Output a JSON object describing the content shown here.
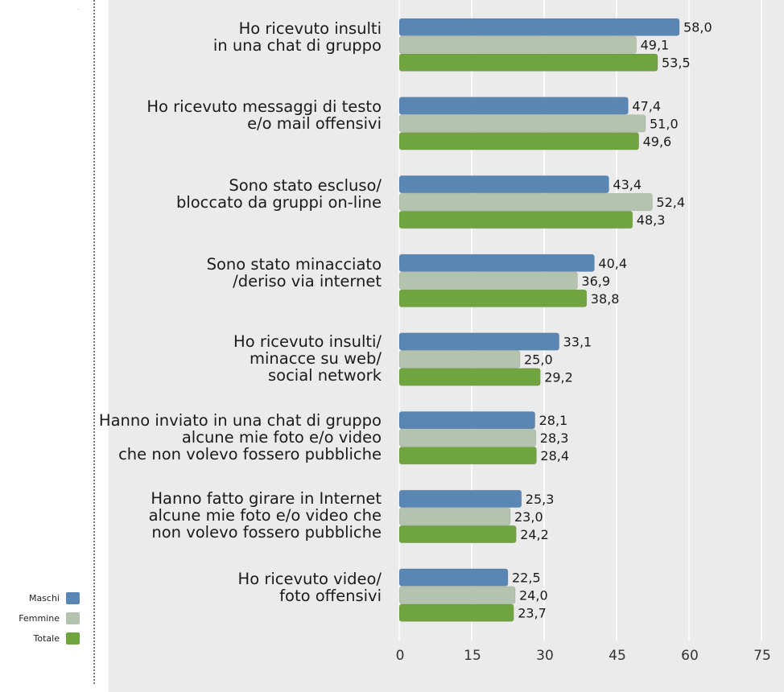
{
  "chart_data": {
    "type": "bar",
    "orientation": "horizontal",
    "categories": [
      [
        "Ho ricevuto insulti",
        "in una chat di gruppo"
      ],
      [
        "Ho ricevuto messaggi di testo",
        "e/o mail offensivi"
      ],
      [
        "Sono stato escluso/",
        "bloccato da gruppi on-line"
      ],
      [
        "Sono stato minacciato",
        "/deriso via internet"
      ],
      [
        "Ho ricevuto insulti/",
        "minacce su web/",
        "social network"
      ],
      [
        "Hanno inviato in una chat di gruppo",
        "alcune mie foto e/o video",
        "che non volevo fossero pubbliche"
      ],
      [
        "Hanno fatto girare in Internet",
        "alcune mie foto e/o video che",
        "non volevo fossero pubbliche"
      ],
      [
        "Ho ricevuto video/",
        "foto offensivi"
      ]
    ],
    "series": [
      {
        "name": "Maschi",
        "color": "#5a86b4",
        "labels": [
          "58,0",
          "47,4",
          "43,4",
          "40,4",
          "33,1",
          "28,1",
          "25,3",
          "22,5"
        ],
        "values": [
          58.0,
          47.4,
          43.4,
          40.4,
          33.1,
          28.1,
          25.3,
          22.5
        ]
      },
      {
        "name": "Femmine",
        "color": "#b4c3ad",
        "labels": [
          "49,1",
          "51,0",
          "52,4",
          "36,9",
          "25,0",
          "28,3",
          "23,0",
          "24,0"
        ],
        "values": [
          49.1,
          51.0,
          52.4,
          36.9,
          25.0,
          28.3,
          23.0,
          24.0
        ]
      },
      {
        "name": "Totale",
        "color": "#6fa43e",
        "labels": [
          "53,5",
          "49,6",
          "48,3",
          "38,8",
          "29,2",
          "28,4",
          "24,2",
          "23,7"
        ],
        "values": [
          53.5,
          49.6,
          48.3,
          38.8,
          29.2,
          28.4,
          24.2,
          23.7
        ]
      }
    ],
    "xlim": [
      0,
      75
    ],
    "xticks": [
      "0",
      "15",
      "30",
      "45",
      "60",
      "75"
    ],
    "grid": true,
    "legend_position": "bottom-left"
  }
}
